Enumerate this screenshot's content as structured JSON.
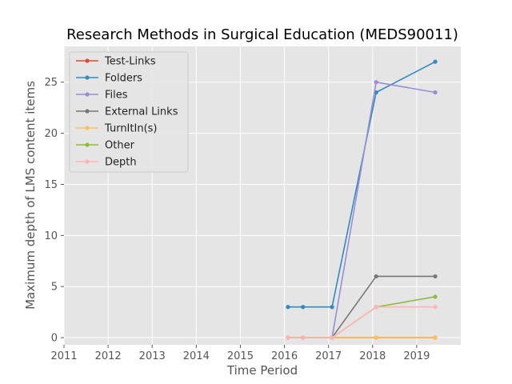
{
  "chart_data": {
    "type": "line",
    "title": "Research Methods in Surgical Education (MEDS90011)",
    "xlabel": "Time Period",
    "ylabel": "Maximum depth of LMS content items",
    "xlim": [
      2011,
      2020
    ],
    "ylim": [
      -0.7,
      28.5
    ],
    "x_ticks": [
      2011,
      2012,
      2013,
      2014,
      2015,
      2016,
      2017,
      2018,
      2019
    ],
    "y_ticks": [
      0,
      5,
      10,
      15,
      20,
      25
    ],
    "grid": true,
    "legend_position": "top-left",
    "x": [
      2016.08,
      2016.42,
      2017.08,
      2018.08,
      2019.42
    ],
    "series": [
      {
        "name": "Test-Links",
        "color": "#E24A33",
        "values": [
          0,
          0,
          0,
          0,
          0
        ]
      },
      {
        "name": "Folders",
        "color": "#348ABD",
        "values": [
          3,
          3,
          3,
          24,
          27
        ]
      },
      {
        "name": "Files",
        "color": "#988ED5",
        "values": [
          0,
          0,
          0,
          25,
          24
        ]
      },
      {
        "name": "External Links",
        "color": "#777777",
        "values": [
          0,
          0,
          0,
          6,
          6
        ]
      },
      {
        "name": "TurnItIn(s)",
        "color": "#FBC15E",
        "values": [
          0,
          0,
          0,
          0,
          0
        ]
      },
      {
        "name": "Other",
        "color": "#8EBA42",
        "values": [
          0,
          0,
          0,
          3,
          4
        ]
      },
      {
        "name": "Depth",
        "color": "#FFB5B8",
        "values": [
          0,
          0,
          0,
          3,
          3
        ]
      }
    ]
  }
}
